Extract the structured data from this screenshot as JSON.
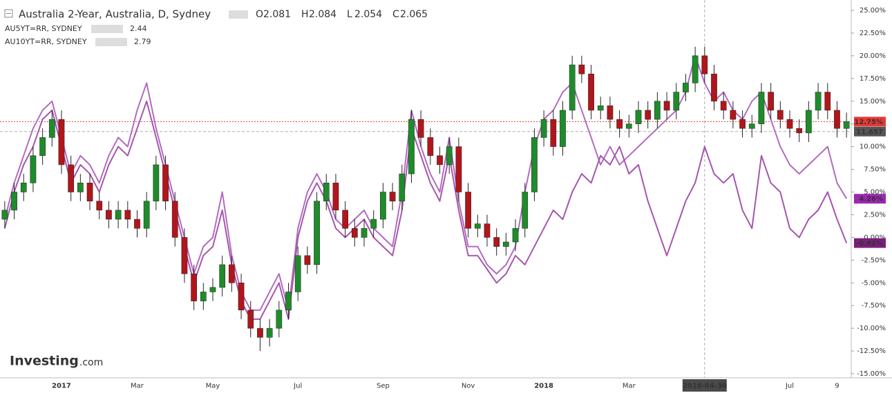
{
  "chart_data": {
    "type": "candlestick",
    "title": "Australia 2-Year, Australia, D, Sydney",
    "quote": [
      {
        "key": "O",
        "value": 2.081
      },
      {
        "key": "H",
        "value": 2.084
      },
      {
        "key": "L",
        "value": 2.054
      },
      {
        "key": "C",
        "value": 2.065
      }
    ],
    "logo": [
      "Investing",
      ".com"
    ],
    "categories": [
      null,
      null,
      null,
      null,
      null,
      null,
      "2017",
      null,
      null,
      null,
      null,
      null,
      null,
      null,
      "Mar",
      null,
      null,
      null,
      null,
      null,
      null,
      null,
      "May",
      null,
      null,
      null,
      null,
      null,
      null,
      null,
      null,
      "Jul",
      null,
      null,
      null,
      null,
      null,
      null,
      null,
      null,
      "Sep",
      null,
      null,
      null,
      null,
      null,
      null,
      null,
      null,
      "Nov",
      null,
      null,
      null,
      null,
      null,
      null,
      null,
      "2018",
      null,
      null,
      null,
      null,
      null,
      null,
      null,
      null,
      "Mar",
      null,
      null,
      null,
      null,
      null,
      null,
      null,
      "2018-04-30",
      null,
      null,
      null,
      null,
      null,
      null,
      null,
      null,
      "Jul",
      null,
      null,
      null,
      null,
      "9",
      null
    ],
    "ohlc": {
      "open": [
        2,
        3,
        5,
        6,
        9,
        11,
        13,
        8,
        5,
        6,
        4,
        3,
        2,
        3,
        2,
        1,
        4,
        8,
        4,
        0,
        -4,
        -7,
        -6,
        -5.5,
        -3,
        -5,
        -8,
        -10,
        -11,
        -10,
        -8,
        -6,
        -2,
        -3,
        4,
        6,
        3,
        1,
        0,
        1,
        2,
        5,
        4,
        7,
        13,
        11,
        9,
        8,
        10,
        5,
        1,
        1.5,
        0,
        -1,
        -0.5,
        1,
        5,
        11,
        13,
        10,
        14,
        19,
        18,
        14,
        14.5,
        13,
        12,
        12.5,
        14,
        13,
        15,
        14,
        16,
        17,
        20,
        18,
        15,
        14,
        13,
        12,
        12.5,
        16,
        14,
        13,
        12,
        11.5,
        14,
        16,
        14,
        12
      ],
      "high": [
        4,
        6,
        7,
        10,
        12,
        14,
        14,
        9,
        7,
        7,
        5,
        4,
        4,
        4,
        3,
        5,
        9,
        9,
        5,
        1,
        -3,
        -5,
        -4.5,
        -2,
        -2,
        -4,
        -7,
        -9,
        -9,
        -7,
        -5,
        -1,
        -1,
        5,
        7,
        7,
        4,
        2,
        2,
        3,
        6,
        6,
        8,
        14,
        14,
        12,
        10,
        11,
        11,
        6,
        2.5,
        2.5,
        1,
        0.5,
        2,
        6,
        12,
        14,
        14,
        15,
        20,
        20,
        19,
        15.5,
        15.5,
        14,
        13.5,
        15,
        15,
        16,
        16,
        17,
        18,
        21,
        21,
        19,
        16,
        15,
        14,
        13.5,
        17,
        17,
        15,
        14,
        13,
        15,
        17,
        17,
        15,
        13.75
      ],
      "low": [
        1,
        2,
        4,
        5,
        8,
        10,
        7,
        4,
        4,
        3,
        2,
        1,
        1,
        1,
        0,
        0,
        3,
        3,
        -1,
        -5,
        -8,
        -8,
        -7,
        -6.5,
        -6,
        -9,
        -11,
        -12.5,
        -12,
        -11,
        -9,
        -7,
        -4,
        -4,
        3,
        2,
        0,
        -1,
        -1,
        0,
        1,
        3,
        3,
        6,
        10,
        8,
        7,
        7,
        4,
        0,
        0,
        -1,
        -2,
        -2,
        -1.5,
        0,
        4,
        10,
        9,
        9,
        13,
        17,
        13,
        13,
        12,
        11,
        11,
        11.5,
        12,
        12,
        13,
        13,
        15,
        16,
        17,
        14,
        13,
        12,
        11,
        11,
        11.5,
        13,
        12,
        11,
        10.5,
        10.5,
        13,
        13,
        11,
        11
      ],
      "close": [
        3,
        5,
        6,
        9,
        11,
        13,
        8,
        5,
        6,
        4,
        3,
        2,
        3,
        2,
        1,
        4,
        8,
        4,
        0,
        -4,
        -7,
        -6,
        -5.5,
        -3,
        -5,
        -8,
        -10,
        -11,
        -10,
        -8,
        -6,
        -2,
        -3,
        4,
        6,
        3,
        1,
        0,
        1,
        2,
        5,
        4,
        7,
        13,
        11,
        9,
        8,
        10,
        5,
        1,
        1.5,
        0,
        -1,
        -0.5,
        1,
        5,
        11,
        13,
        10,
        14,
        19,
        18,
        14,
        14.5,
        13,
        12,
        12.5,
        14,
        13,
        15,
        14,
        16,
        17,
        20,
        18,
        15,
        14,
        13,
        12,
        12.5,
        16,
        14,
        13,
        12,
        11.5,
        14,
        16,
        14,
        12,
        12.75
      ],
      "color_up": "#1e8c2a",
      "color_down": "#b0161b",
      "last_value_label": "12.75%",
      "label_color": "#e53935"
    },
    "series": [
      {
        "name": "AU5YT=RR, SYDNEY",
        "color": "#b36ac0",
        "legend_value": 2.44,
        "last_value_label": "4.26%",
        "label_color": "#9c27b0",
        "values": [
          2,
          6,
          9,
          12,
          14,
          15,
          11,
          7,
          9,
          8,
          6,
          9,
          11,
          10,
          14,
          17,
          12,
          8,
          4,
          0,
          -4,
          -1,
          0,
          5,
          -2,
          -6,
          -8,
          -8,
          -6,
          -4,
          -8,
          1,
          5,
          7,
          5,
          2,
          1,
          2,
          3,
          1,
          0,
          -1,
          5,
          14,
          10,
          7,
          5,
          11,
          4,
          -1,
          -1,
          -3,
          -4,
          -3,
          -1,
          5,
          10,
          13,
          14,
          16,
          17,
          14,
          11,
          8,
          10,
          8,
          9,
          10,
          11,
          12,
          13,
          14,
          16,
          20,
          17,
          15,
          16,
          14,
          13,
          15,
          16,
          13,
          10,
          8,
          7,
          8,
          9,
          10,
          6,
          4.26
        ]
      },
      {
        "name": "AU10YT=RR, SYDNEY",
        "color": "#a555ad",
        "legend_value": 2.79,
        "last_value_label": "-0.62%",
        "label_color": "#7b1f7b",
        "values": [
          1,
          5,
          8,
          10,
          13,
          14,
          10,
          6,
          8,
          7,
          5,
          8,
          10,
          9,
          12,
          15,
          11,
          7,
          3,
          -1,
          -5,
          -2,
          -1,
          3,
          -3,
          -7,
          -9,
          -9,
          -7,
          -5,
          -9,
          0,
          4,
          6,
          4,
          1,
          0,
          1,
          2,
          0,
          -1,
          -2,
          3,
          12,
          9,
          6,
          4,
          9,
          3,
          -2,
          -2,
          -3.5,
          -5,
          -4,
          -2,
          -3,
          -1,
          1,
          3,
          2,
          5,
          7,
          6,
          9,
          8,
          10,
          7,
          8,
          4,
          1,
          -2,
          1,
          4,
          6,
          10,
          7,
          6,
          7,
          3,
          1,
          9,
          6,
          5,
          1,
          0,
          2,
          3,
          5,
          2,
          -0.62
        ]
      }
    ],
    "crosshair": {
      "y": 11.657
    },
    "ylim": [
      -15,
      25
    ],
    "yticks": [
      {
        "value": 25,
        "label": "25.00%"
      },
      {
        "value": 22.5,
        "label": "22.50%"
      },
      {
        "value": 20,
        "label": "20.00%"
      },
      {
        "value": 17.5,
        "label": "17.50%"
      },
      {
        "value": 15,
        "label": "15.00%"
      },
      {
        "value": 12.5,
        "label": "12.50%"
      },
      {
        "value": 10,
        "label": "10.00%"
      },
      {
        "value": 7.5,
        "label": "7.50%"
      },
      {
        "value": 5,
        "label": "5.00%"
      },
      {
        "value": 2.5,
        "label": "2.50%"
      },
      {
        "value": 0,
        "label": "0.00%"
      },
      {
        "value": -2.5,
        "label": "-2.50%"
      },
      {
        "value": -5,
        "label": "-5.00%"
      },
      {
        "value": -7.5,
        "label": "-7.50%"
      },
      {
        "value": -10,
        "label": "-10.00%"
      },
      {
        "value": -12.5,
        "label": "-12.50%"
      },
      {
        "value": -15,
        "label": "-15.00%"
      }
    ]
  }
}
